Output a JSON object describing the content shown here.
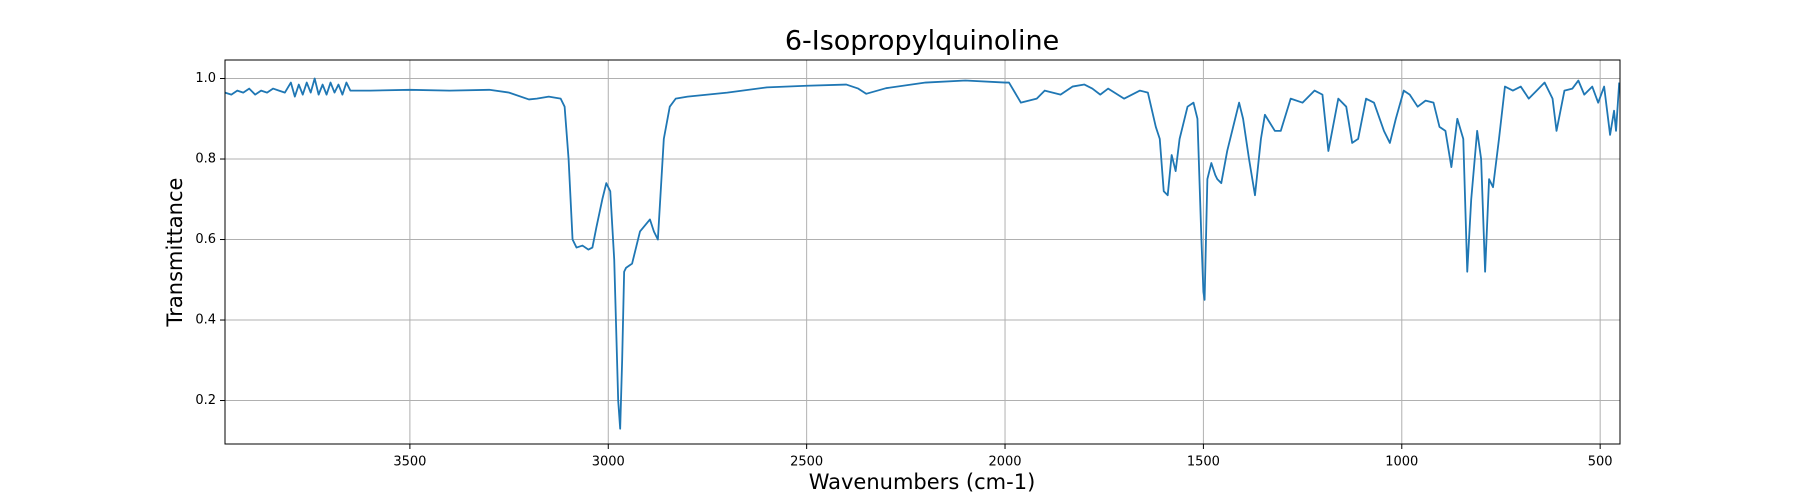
{
  "chart_data": {
    "type": "line",
    "title": "6-Isopropylquinoline",
    "x_label": "Wavenumbers (cm-1)",
    "y_label": "Transmittance",
    "xlim": [
      3966,
      450
    ],
    "ylim": [
      0.092,
      1.046
    ],
    "xticks": [
      3500,
      3000,
      2500,
      2000,
      1500,
      1000,
      500
    ],
    "yticks": [
      0.2,
      0.4,
      0.6,
      0.8,
      {
        "value": 1.0,
        "label": "1.0"
      }
    ],
    "grid": true,
    "x_reversed": true,
    "x": [
      3966,
      3950,
      3935,
      3920,
      3905,
      3890,
      3875,
      3860,
      3845,
      3830,
      3815,
      3800,
      3790,
      3780,
      3770,
      3760,
      3750,
      3740,
      3730,
      3720,
      3710,
      3700,
      3690,
      3680,
      3670,
      3660,
      3650,
      3600,
      3500,
      3400,
      3300,
      3250,
      3200,
      3180,
      3150,
      3120,
      3110,
      3100,
      3090,
      3080,
      3065,
      3050,
      3040,
      3030,
      3015,
      3005,
      2995,
      2985,
      2975,
      2970,
      2965,
      2960,
      2955,
      2940,
      2920,
      2895,
      2885,
      2875,
      2860,
      2845,
      2830,
      2800,
      2700,
      2600,
      2500,
      2400,
      2370,
      2350,
      2300,
      2200,
      2100,
      2000,
      1990,
      1960,
      1940,
      1920,
      1900,
      1880,
      1860,
      1830,
      1800,
      1780,
      1760,
      1740,
      1700,
      1660,
      1640,
      1620,
      1610,
      1600,
      1590,
      1580,
      1570,
      1560,
      1540,
      1525,
      1515,
      1505,
      1500,
      1497,
      1490,
      1480,
      1470,
      1465,
      1455,
      1440,
      1420,
      1410,
      1400,
      1385,
      1370,
      1355,
      1345,
      1320,
      1305,
      1280,
      1250,
      1220,
      1200,
      1185,
      1160,
      1140,
      1125,
      1110,
      1090,
      1070,
      1045,
      1030,
      1015,
      995,
      980,
      960,
      940,
      920,
      905,
      890,
      875,
      860,
      845,
      835,
      825,
      810,
      800,
      790,
      780,
      770,
      755,
      740,
      720,
      700,
      680,
      660,
      640,
      620,
      610,
      590,
      570,
      555,
      540,
      520,
      505,
      490,
      475,
      465,
      460,
      452
    ],
    "series": [
      {
        "color": "#1f77b4",
        "values": [
          0.965,
          0.96,
          0.97,
          0.965,
          0.975,
          0.96,
          0.97,
          0.965,
          0.975,
          0.97,
          0.965,
          0.99,
          0.955,
          0.985,
          0.96,
          0.99,
          0.965,
          1.0,
          0.96,
          0.985,
          0.96,
          0.99,
          0.965,
          0.985,
          0.96,
          0.99,
          0.97,
          0.97,
          0.972,
          0.97,
          0.972,
          0.965,
          0.948,
          0.95,
          0.955,
          0.95,
          0.93,
          0.8,
          0.6,
          0.58,
          0.585,
          0.575,
          0.58,
          0.63,
          0.7,
          0.74,
          0.72,
          0.55,
          0.2,
          0.13,
          0.3,
          0.52,
          0.53,
          0.54,
          0.62,
          0.65,
          0.62,
          0.6,
          0.85,
          0.93,
          0.95,
          0.955,
          0.965,
          0.978,
          0.982,
          0.985,
          0.975,
          0.962,
          0.976,
          0.99,
          0.995,
          0.99,
          0.99,
          0.94,
          0.945,
          0.95,
          0.97,
          0.965,
          0.96,
          0.98,
          0.985,
          0.975,
          0.96,
          0.975,
          0.95,
          0.97,
          0.965,
          0.88,
          0.85,
          0.72,
          0.71,
          0.81,
          0.77,
          0.85,
          0.93,
          0.94,
          0.9,
          0.6,
          0.47,
          0.45,
          0.75,
          0.79,
          0.76,
          0.75,
          0.74,
          0.82,
          0.9,
          0.94,
          0.9,
          0.8,
          0.71,
          0.85,
          0.91,
          0.87,
          0.87,
          0.95,
          0.94,
          0.97,
          0.96,
          0.82,
          0.95,
          0.93,
          0.84,
          0.85,
          0.95,
          0.94,
          0.87,
          0.84,
          0.9,
          0.97,
          0.96,
          0.93,
          0.945,
          0.94,
          0.88,
          0.87,
          0.78,
          0.9,
          0.85,
          0.52,
          0.7,
          0.87,
          0.8,
          0.52,
          0.75,
          0.73,
          0.85,
          0.98,
          0.97,
          0.98,
          0.95,
          0.97,
          0.99,
          0.95,
          0.87,
          0.97,
          0.975,
          0.995,
          0.96,
          0.98,
          0.94,
          0.98,
          0.86,
          0.92,
          0.87,
          0.99
        ]
      }
    ]
  }
}
